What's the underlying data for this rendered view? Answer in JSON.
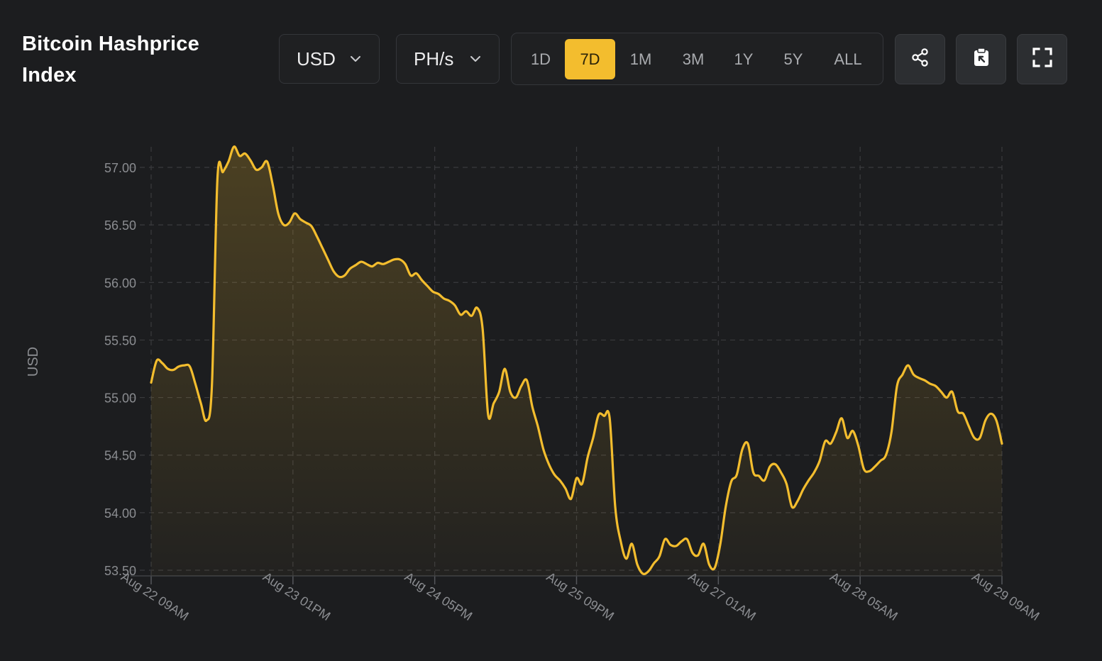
{
  "header": {
    "title": "Bitcoin Hashprice Index",
    "currency_select": {
      "value": "USD",
      "icon": "chevron-down-icon"
    },
    "unit_select": {
      "value": "PH/s",
      "icon": "chevron-down-icon"
    },
    "ranges": [
      "1D",
      "7D",
      "1M",
      "3M",
      "1Y",
      "5Y",
      "ALL"
    ],
    "active_range": "7D",
    "actions": [
      {
        "name": "share",
        "icon": "share-icon"
      },
      {
        "name": "clipboard",
        "icon": "clipboard-icon"
      },
      {
        "name": "fullscreen",
        "icon": "fullscreen-icon"
      }
    ]
  },
  "colors": {
    "background": "#1c1d1f",
    "accent": "#f3bd2e",
    "grid": "#3a3b3e",
    "axis_text": "#8b8d91"
  },
  "chart_data": {
    "type": "area",
    "title": "",
    "xlabel": "",
    "ylabel": "USD",
    "ylim": [
      53.45,
      57.2
    ],
    "yticks": [
      53.5,
      54.0,
      54.5,
      55.0,
      55.5,
      56.0,
      56.5,
      57.0
    ],
    "ytick_labels": [
      "53.50",
      "54.00",
      "54.50",
      "55.00",
      "55.50",
      "56.00",
      "56.50",
      "57.00"
    ],
    "xtick_labels": [
      "Aug 22 09AM",
      "Aug 23 01PM",
      "Aug 24 05PM",
      "Aug 25 09PM",
      "Aug 27 01AM",
      "Aug 28 05AM",
      "Aug 29 09AM"
    ],
    "grid": true,
    "series": [
      {
        "values": [
          55.13,
          55.32,
          55.3,
          55.25,
          55.24,
          55.27,
          55.28,
          55.27,
          55.12,
          54.95,
          54.8,
          55.1,
          56.9,
          56.96,
          57.05,
          57.18,
          57.1,
          57.12,
          57.06,
          56.98,
          57.0,
          57.05,
          56.85,
          56.6,
          56.5,
          56.52,
          56.6,
          56.55,
          56.52,
          56.49,
          56.4,
          56.3,
          56.2,
          56.1,
          56.05,
          56.06,
          56.12,
          56.15,
          56.18,
          56.16,
          56.14,
          56.17,
          56.16,
          56.18,
          56.2,
          56.2,
          56.16,
          56.06,
          56.08,
          56.02,
          55.97,
          55.92,
          55.9,
          55.86,
          55.84,
          55.8,
          55.72,
          55.75,
          55.71,
          55.78,
          55.6,
          54.85,
          54.95,
          55.05,
          55.25,
          55.05,
          55.0,
          55.1,
          55.15,
          54.92,
          54.75,
          54.55,
          54.42,
          54.33,
          54.28,
          54.21,
          54.12,
          54.3,
          54.25,
          54.48,
          54.65,
          54.85,
          54.84,
          54.82,
          54.05,
          53.75,
          53.6,
          53.73,
          53.55,
          53.47,
          53.49,
          53.56,
          53.62,
          53.77,
          53.72,
          53.71,
          53.75,
          53.77,
          53.65,
          53.63,
          53.73,
          53.55,
          53.52,
          53.72,
          54.05,
          54.27,
          54.33,
          54.55,
          54.6,
          54.35,
          54.32,
          54.28,
          54.4,
          54.42,
          54.35,
          54.25,
          54.05,
          54.1,
          54.2,
          54.28,
          54.35,
          54.45,
          54.62,
          54.6,
          54.7,
          54.82,
          54.65,
          54.71,
          54.58,
          54.38,
          54.36,
          54.4,
          54.45,
          54.5,
          54.7,
          55.1,
          55.2,
          55.28,
          55.2,
          55.17,
          55.15,
          55.12,
          55.1,
          55.05,
          55.0,
          55.05,
          54.88,
          54.86,
          54.75,
          54.65,
          54.65,
          54.8,
          54.86,
          54.8,
          54.6
        ]
      }
    ]
  }
}
